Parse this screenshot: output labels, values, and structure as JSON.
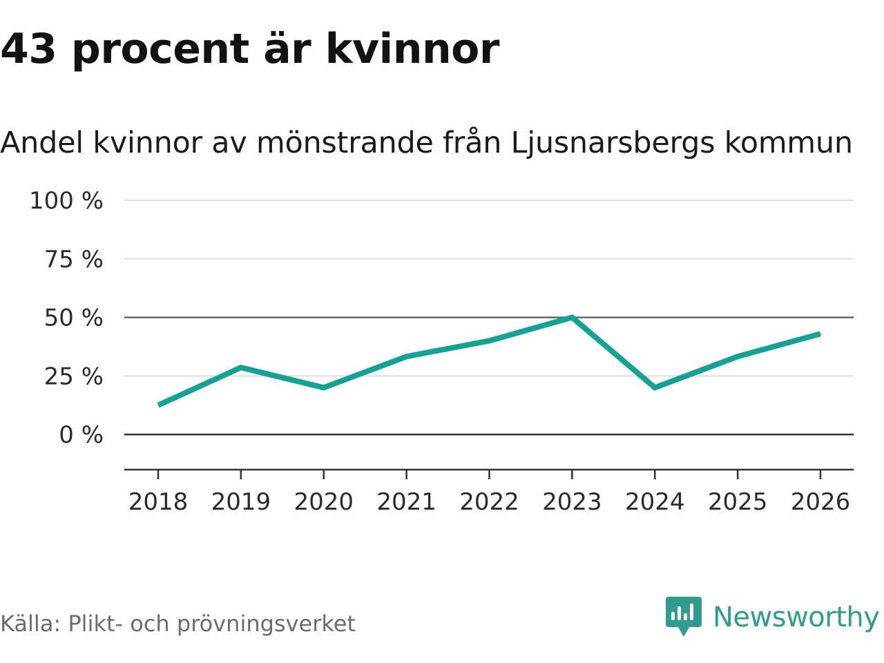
{
  "colors": {
    "line": "#14a295",
    "brand": "#2f9c8d",
    "grid": "#dddddd",
    "axis": "#333333",
    "reference": "#666666"
  },
  "source": "Källa: Plikt- och prövningsverket",
  "brand": {
    "name": "Newsworthy",
    "icon": "newsworthy-logo-icon"
  },
  "chart_data": {
    "type": "line",
    "title": "43 procent är kvinnor",
    "subtitle": "Andel kvinnor av mönstrande från Ljusnarsbergs kommun",
    "xlabel": "",
    "ylabel": "",
    "x": [
      "2018",
      "2019",
      "2020",
      "2021",
      "2022",
      "2023",
      "2024",
      "2025",
      "2026"
    ],
    "series": [
      {
        "name": "Andel kvinnor",
        "values": [
          12.5,
          28.6,
          20,
          33.3,
          40,
          50,
          20,
          33.3,
          43
        ]
      }
    ],
    "ylim": [
      -15,
      100
    ],
    "yticks": [
      0,
      25,
      50,
      75,
      100
    ],
    "ytick_labels": [
      "0 %",
      "25 %",
      "50 %",
      "75 %",
      "100 %"
    ],
    "grid": true,
    "reference_lines": [
      0,
      50
    ]
  }
}
